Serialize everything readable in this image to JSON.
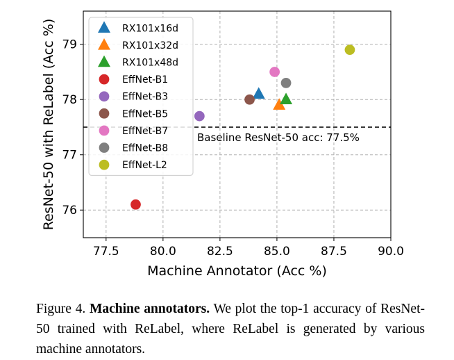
{
  "chart_data": {
    "type": "scatter",
    "xlabel": "Machine Annotator (Acc %)",
    "ylabel": "ResNet-50 with ReLabel (Acc %)",
    "xlim": [
      76.5,
      90.0
    ],
    "ylim": [
      75.5,
      79.6
    ],
    "xticks": [
      "77.5",
      "80.0",
      "82.5",
      "85.0",
      "87.5",
      "90.0"
    ],
    "yticks": [
      "76",
      "77",
      "78",
      "79"
    ],
    "grid": true,
    "legend_position": "upper-left",
    "baseline": {
      "y": 77.5,
      "label": "Baseline ResNet-50 acc: 77.5%"
    },
    "series": [
      {
        "name": "RX101x16d",
        "marker": "triangle",
        "color": "#1f77b4",
        "x": 84.2,
        "y": 78.1
      },
      {
        "name": "RX101x32d",
        "marker": "triangle",
        "color": "#ff7f0e",
        "x": 85.1,
        "y": 77.9
      },
      {
        "name": "RX101x48d",
        "marker": "triangle",
        "color": "#2ca02c",
        "x": 85.4,
        "y": 78.0
      },
      {
        "name": "EffNet-B1",
        "marker": "circle",
        "color": "#d62728",
        "x": 78.8,
        "y": 76.1
      },
      {
        "name": "EffNet-B3",
        "marker": "circle",
        "color": "#9467bd",
        "x": 81.6,
        "y": 77.7
      },
      {
        "name": "EffNet-B5",
        "marker": "circle",
        "color": "#8c564b",
        "x": 83.8,
        "y": 78.0
      },
      {
        "name": "EffNet-B7",
        "marker": "circle",
        "color": "#e377c2",
        "x": 84.9,
        "y": 78.5
      },
      {
        "name": "EffNet-B8",
        "marker": "circle",
        "color": "#7f7f7f",
        "x": 85.4,
        "y": 78.3
      },
      {
        "name": "EffNet-L2",
        "marker": "circle",
        "color": "#bcbd22",
        "x": 88.2,
        "y": 78.9
      }
    ]
  },
  "caption": {
    "label": "Figure 4.",
    "bold": "Machine annotators.",
    "text": "We plot the top-1 accuracy of ResNet-50 trained with ReLabel, where ReLabel is generated by various machine annotators."
  }
}
